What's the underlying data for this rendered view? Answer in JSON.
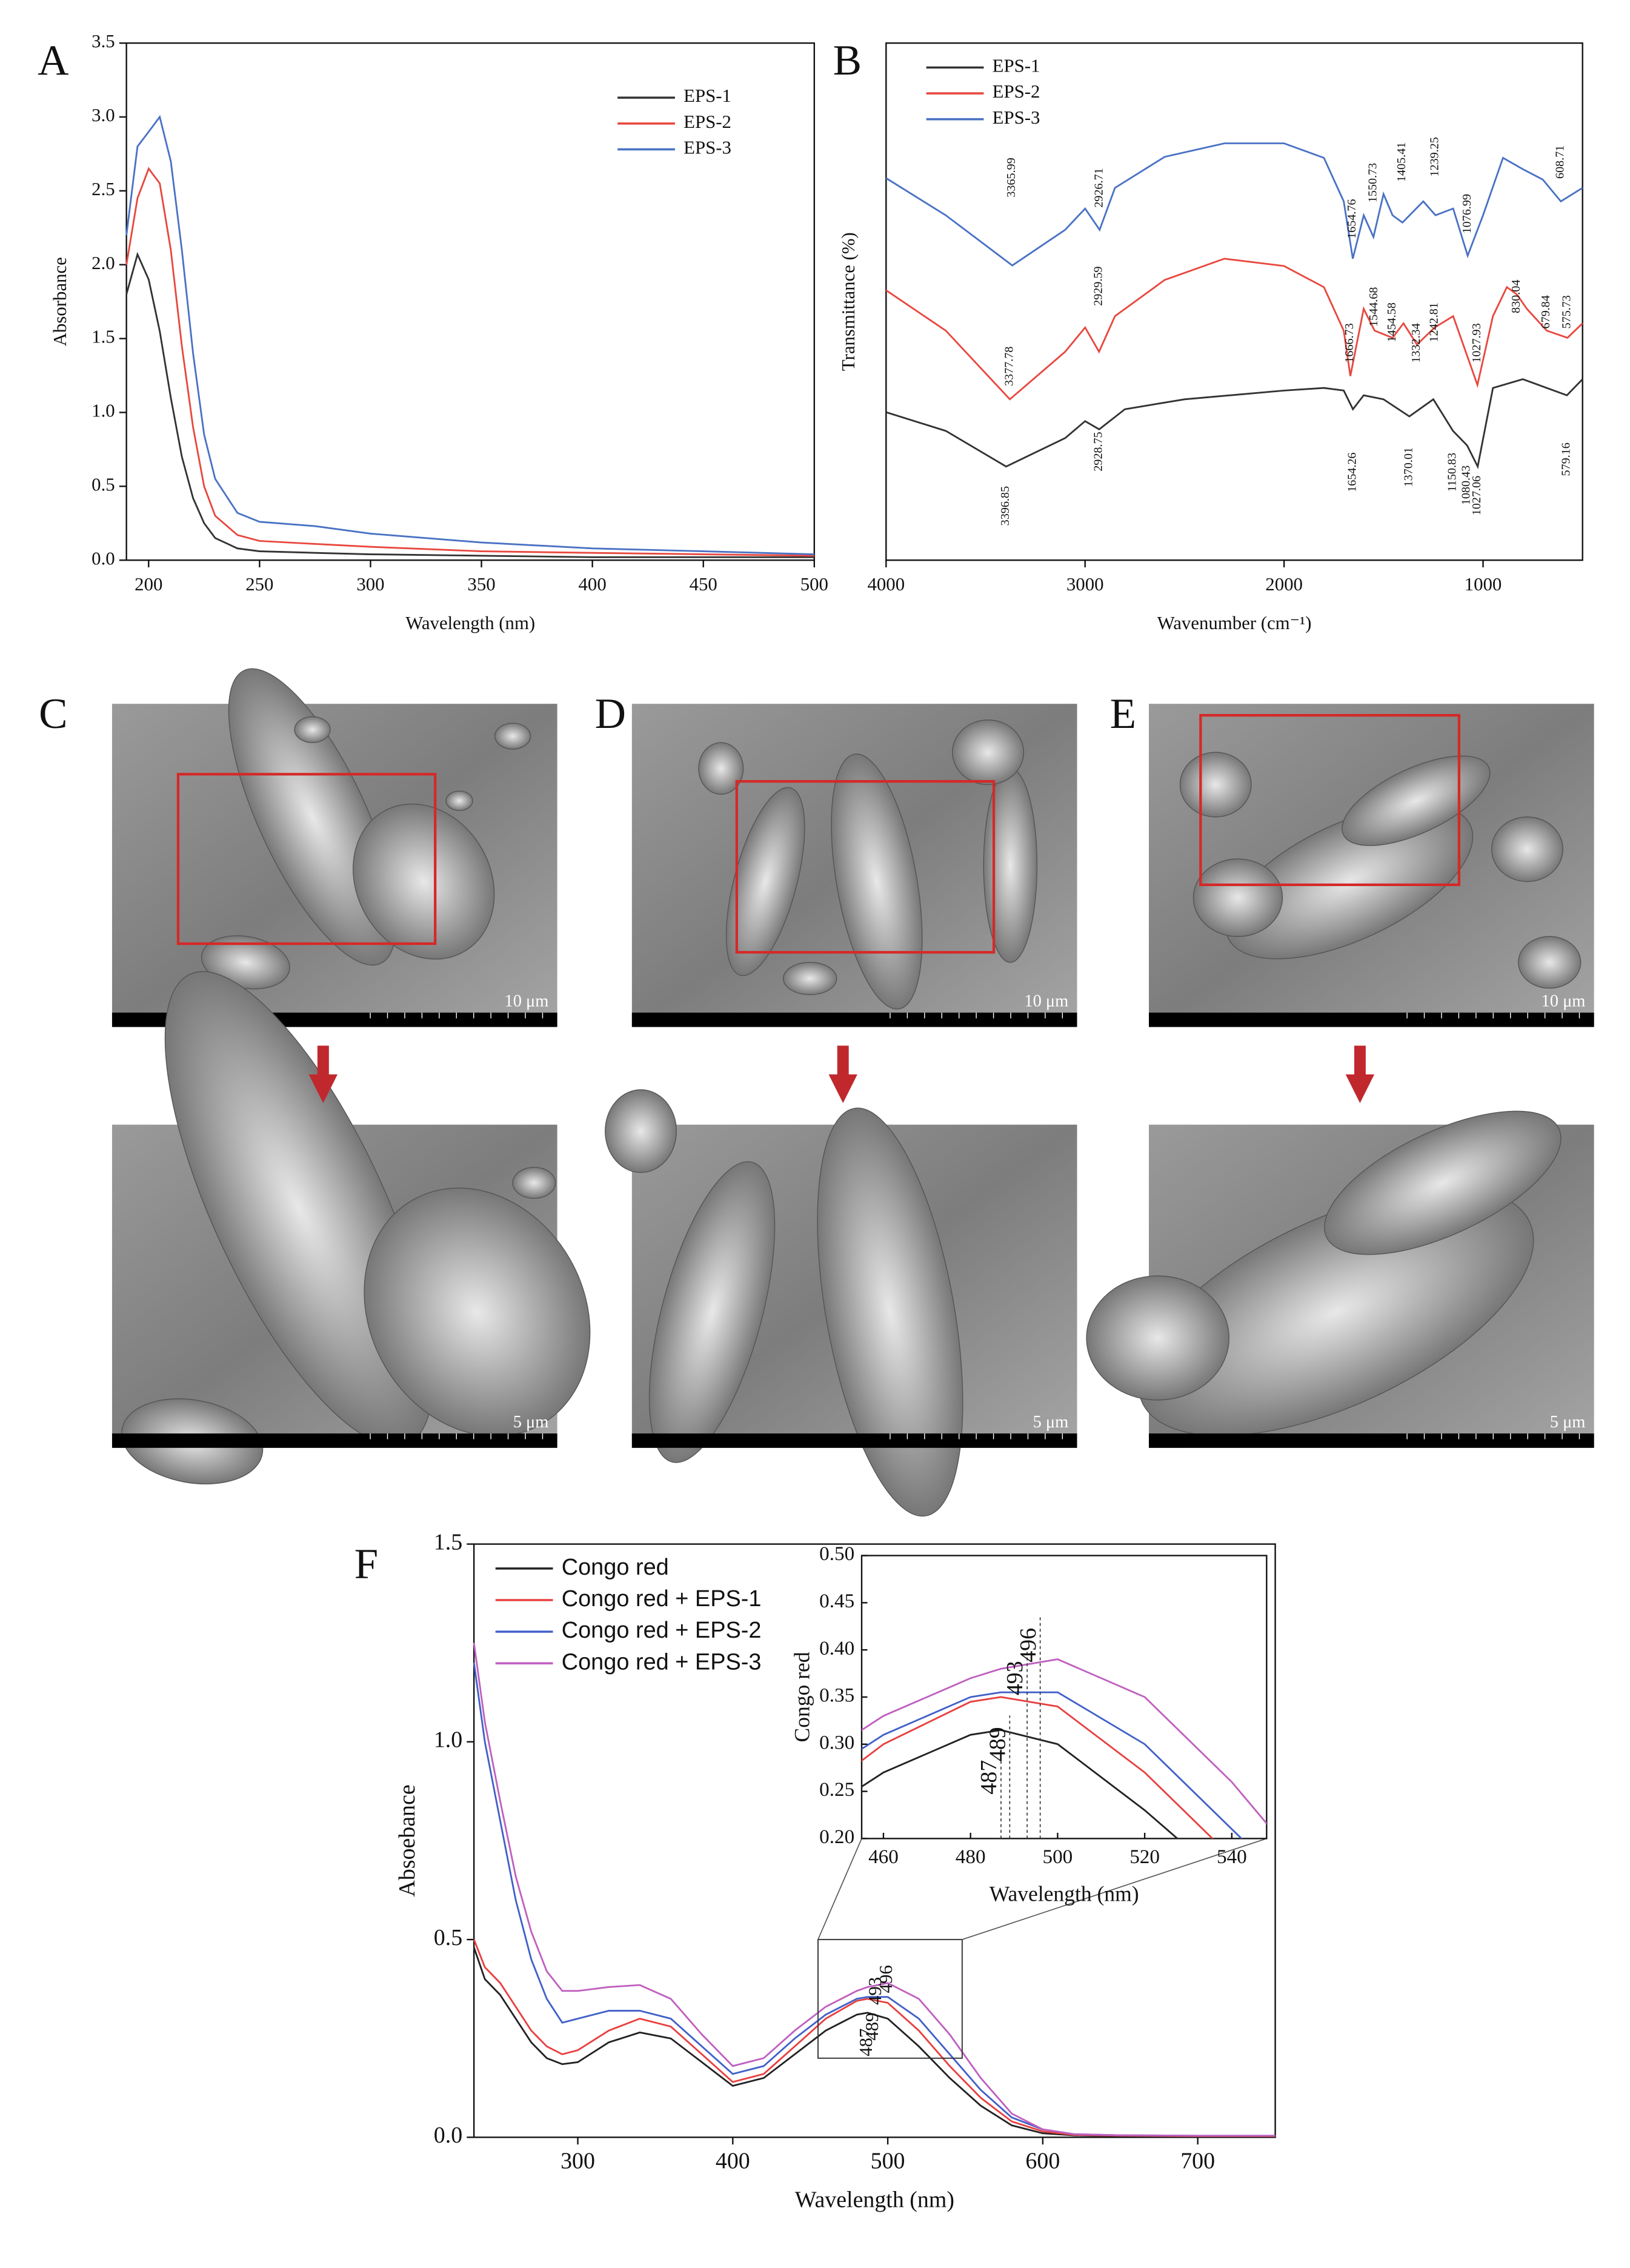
{
  "chart_data": [
    {
      "type": "line",
      "panel_label": "A",
      "xlabel": "Wavelength (nm)",
      "ylabel": "Absorbance",
      "legend": "top-right",
      "xlim": [
        190,
        500
      ],
      "xticks": [
        200,
        250,
        300,
        350,
        400,
        450,
        500
      ],
      "ylim": [
        0,
        3.5
      ],
      "yticks": [
        {
          "value": 0,
          "label": "0.0"
        },
        0.5,
        {
          "value": 1,
          "label": "1.0"
        },
        1.5,
        {
          "value": 2,
          "label": "2.0"
        },
        2.5,
        {
          "value": 3,
          "label": "3.0"
        },
        3.5
      ],
      "x": [
        190,
        195,
        200,
        205,
        210,
        215,
        220,
        225,
        230,
        240,
        250,
        275,
        300,
        350,
        400,
        450,
        500
      ],
      "series": [
        {
          "name": "EPS-1",
          "color": "#333333",
          "values": [
            1.8,
            2.07,
            1.9,
            1.55,
            1.1,
            0.7,
            0.42,
            0.25,
            0.15,
            0.08,
            0.06,
            0.05,
            0.04,
            0.03,
            0.02,
            0.02,
            0.02
          ]
        },
        {
          "name": "EPS-2",
          "color": "#e8483f",
          "values": [
            2.0,
            2.45,
            2.65,
            2.55,
            2.1,
            1.45,
            0.9,
            0.5,
            0.3,
            0.17,
            0.13,
            0.11,
            0.09,
            0.06,
            0.05,
            0.04,
            0.03
          ]
        },
        {
          "name": "EPS-3",
          "color": "#4a72c4",
          "values": [
            2.2,
            2.8,
            2.9,
            3.0,
            2.7,
            2.1,
            1.4,
            0.85,
            0.55,
            0.32,
            0.26,
            0.23,
            0.18,
            0.12,
            0.08,
            0.06,
            0.04
          ]
        }
      ]
    },
    {
      "type": "line",
      "panel_label": "B",
      "xlabel": "Wavenumber (cm⁻¹)",
      "ylabel": "Transmittance (%)",
      "legend": "top-left",
      "xlim": [
        4000,
        500
      ],
      "xticks": [
        4000,
        3000,
        2000,
        1000
      ],
      "ylim": [
        0,
        100
      ],
      "series": [
        {
          "name": "EPS-1",
          "color": "#333333",
          "x": [
            4000,
            3700,
            3397,
            3100,
            3000,
            2929,
            2800,
            2500,
            2000,
            1800,
            1700,
            1654,
            1600,
            1500,
            1370,
            1250,
            1151,
            1080,
            1027,
            950,
            800,
            579,
            500
          ],
          "values": [
            28.6,
            25,
            18.1,
            23.6,
            26.9,
            25.3,
            29.2,
            31.1,
            32.8,
            33.3,
            32.8,
            29.2,
            31.9,
            31.1,
            27.8,
            31.1,
            25,
            22.2,
            18.1,
            33.3,
            35,
            31.9,
            35
          ]
        },
        {
          "name": "EPS-2",
          "color": "#e8483f",
          "x": [
            4000,
            3700,
            3378,
            3100,
            3000,
            2930,
            2850,
            2600,
            2300,
            2000,
            1800,
            1700,
            1667,
            1600,
            1545,
            1455,
            1400,
            1332,
            1243,
            1150,
            1028,
            950,
            880,
            830,
            780,
            680,
            576,
            500
          ],
          "values": [
            52.2,
            44.4,
            31.1,
            40.3,
            45,
            40.3,
            47.2,
            54.2,
            58.3,
            56.9,
            52.8,
            44.4,
            35.6,
            48.6,
            44.4,
            43,
            45.8,
            41.7,
            45,
            47.2,
            33.9,
            47.2,
            52.8,
            51.4,
            48.6,
            44.4,
            43,
            45.8
          ]
        },
        {
          "name": "EPS-3",
          "color": "#4a72c4",
          "x": [
            4000,
            3700,
            3366,
            3100,
            3000,
            2927,
            2850,
            2600,
            2300,
            2000,
            1800,
            1700,
            1655,
            1600,
            1551,
            1500,
            1455,
            1405,
            1300,
            1239,
            1150,
            1077,
            1000,
            900,
            800,
            700,
            609,
            500
          ],
          "values": [
            73.9,
            66.7,
            57,
            63.9,
            68,
            63.9,
            72,
            78,
            80.6,
            80.6,
            77.8,
            69.4,
            58.3,
            66.7,
            62.5,
            70.8,
            66.7,
            65.3,
            69.4,
            66.7,
            68,
            58.9,
            66.7,
            77.8,
            75.6,
            73.6,
            69.4,
            72
          ]
        }
      ],
      "annotations": [
        {
          "text": "3365.99",
          "x": 3365.99,
          "y": 74
        },
        {
          "text": "2926.71",
          "x": 2926.71,
          "y": 72
        },
        {
          "text": "1654.76",
          "x": 1654.76,
          "y": 66
        },
        {
          "text": "1550.73",
          "x": 1550.73,
          "y": 73
        },
        {
          "text": "1405.41",
          "x": 1405.41,
          "y": 77
        },
        {
          "text": "1239.25",
          "x": 1239.25,
          "y": 78
        },
        {
          "text": "1076.99",
          "x": 1076.99,
          "y": 67
        },
        {
          "text": "608.71",
          "x": 608.71,
          "y": 77
        },
        {
          "text": "3377.78",
          "x": 3377.78,
          "y": 37.5
        },
        {
          "text": "2929.59",
          "x": 2929.59,
          "y": 53
        },
        {
          "text": "1666.73",
          "x": 1666.73,
          "y": 42
        },
        {
          "text": "1544.68",
          "x": 1544.68,
          "y": 49
        },
        {
          "text": "1454.58",
          "x": 1454.58,
          "y": 46
        },
        {
          "text": "1332.34",
          "x": 1332.34,
          "y": 42
        },
        {
          "text": "1242.81",
          "x": 1242.81,
          "y": 46
        },
        {
          "text": "1027.93",
          "x": 1027.93,
          "y": 42
        },
        {
          "text": "830.04",
          "x": 830.04,
          "y": 51
        },
        {
          "text": "679.84",
          "x": 679.84,
          "y": 48
        },
        {
          "text": "575.73",
          "x": 575.73,
          "y": 48
        },
        {
          "text": "3396.85",
          "x": 3396.85,
          "y": 10.5
        },
        {
          "text": "2928.75",
          "x": 2928.75,
          "y": 21
        },
        {
          "text": "1654.26",
          "x": 1654.26,
          "y": 17
        },
        {
          "text": "1370.01",
          "x": 1370.01,
          "y": 18
        },
        {
          "text": "1150.83",
          "x": 1150.83,
          "y": 17
        },
        {
          "text": "1080.43",
          "x": 1080.43,
          "y": 14.5
        },
        {
          "text": "1027.06",
          "x": 1027.06,
          "y": 12.5
        },
        {
          "text": "579.16",
          "x": 579.16,
          "y": 19.5
        }
      ]
    },
    {
      "type": "line",
      "panel_label": "F",
      "xlabel": "Wavelength (nm)",
      "ylabel": "Absoebance",
      "legend": "top-left",
      "xlim": [
        233,
        750
      ],
      "xticks": [
        300,
        400,
        500,
        600,
        700
      ],
      "ylim": [
        0,
        1.5
      ],
      "yticks": [
        {
          "value": 0,
          "label": "0.0"
        },
        0.5,
        {
          "value": 1,
          "label": "1.0"
        },
        1.5
      ],
      "x": [
        233,
        240,
        250,
        260,
        270,
        280,
        290,
        300,
        320,
        340,
        360,
        380,
        400,
        420,
        440,
        460,
        480,
        487,
        500,
        520,
        540,
        560,
        580,
        600,
        620,
        650,
        700,
        750
      ],
      "series": [
        {
          "name": "Congo red",
          "color": "#222222",
          "values": [
            0.48,
            0.4,
            0.36,
            0.3,
            0.24,
            0.2,
            0.185,
            0.19,
            0.24,
            0.265,
            0.25,
            0.19,
            0.13,
            0.15,
            0.21,
            0.27,
            0.31,
            0.315,
            0.3,
            0.23,
            0.15,
            0.08,
            0.03,
            0.01,
            0.005,
            0.003,
            0.002,
            0.002
          ]
        },
        {
          "name": "Congo red + EPS-1",
          "color": "#e84040",
          "values": [
            0.5,
            0.43,
            0.39,
            0.33,
            0.27,
            0.23,
            0.21,
            0.22,
            0.27,
            0.3,
            0.28,
            0.21,
            0.14,
            0.16,
            0.23,
            0.3,
            0.345,
            0.35,
            0.34,
            0.27,
            0.18,
            0.1,
            0.04,
            0.015,
            0.006,
            0.004,
            0.003,
            0.003
          ]
        },
        {
          "name": "Congo red + EPS-2",
          "color": "#4060c8",
          "values": [
            1.2,
            1.0,
            0.8,
            0.6,
            0.45,
            0.35,
            0.29,
            0.3,
            0.32,
            0.32,
            0.3,
            0.23,
            0.16,
            0.18,
            0.25,
            0.31,
            0.35,
            0.355,
            0.355,
            0.3,
            0.21,
            0.12,
            0.05,
            0.02,
            0.008,
            0.005,
            0.004,
            0.004
          ]
        },
        {
          "name": "Congo red + EPS-3",
          "color": "#c060c0",
          "values": [
            1.25,
            1.05,
            0.85,
            0.66,
            0.52,
            0.42,
            0.37,
            0.37,
            0.38,
            0.385,
            0.35,
            0.26,
            0.18,
            0.2,
            0.27,
            0.33,
            0.37,
            0.38,
            0.39,
            0.35,
            0.26,
            0.15,
            0.06,
            0.02,
            0.008,
            0.005,
            0.004,
            0.004
          ]
        }
      ],
      "annotations": [
        {
          "text": "487",
          "x": 487,
          "y": 0.24
        },
        {
          "text": "489",
          "x": 491,
          "y": 0.28
        },
        {
          "text": "493",
          "x": 493,
          "y": 0.37
        },
        {
          "text": "496",
          "x": 500,
          "y": 0.4
        }
      ],
      "inset": {
        "xlabel": "Wavelength (nm)",
        "ylabel": "Congo red",
        "xlim": [
          455,
          548
        ],
        "xticks": [
          460,
          480,
          500,
          520,
          540
        ],
        "ylim": [
          0.2,
          0.5
        ],
        "yticks": [
          {
            "value": 0.2,
            "label": "0.20"
          },
          0.25,
          {
            "value": 0.3,
            "label": "0.30"
          },
          0.35,
          {
            "value": 0.4,
            "label": "0.40"
          },
          0.45,
          {
            "value": 0.5,
            "label": "0.50"
          }
        ],
        "annotations": [
          {
            "text": "487",
            "x": 487,
            "y": 0.265
          },
          {
            "text": "489",
            "x": 489,
            "y": 0.3
          },
          {
            "text": "493",
            "x": 493,
            "y": 0.37
          },
          {
            "text": "496",
            "x": 496,
            "y": 0.405
          }
        ]
      }
    }
  ],
  "images": [
    {
      "panel_label": "C",
      "scale_top": "10 μm",
      "scale_bottom": "5 μm"
    },
    {
      "panel_label": "D",
      "scale_top": "10 μm",
      "scale_bottom": "5 μm"
    },
    {
      "panel_label": "E",
      "scale_top": "10 μm",
      "scale_bottom": "5 μm"
    }
  ]
}
